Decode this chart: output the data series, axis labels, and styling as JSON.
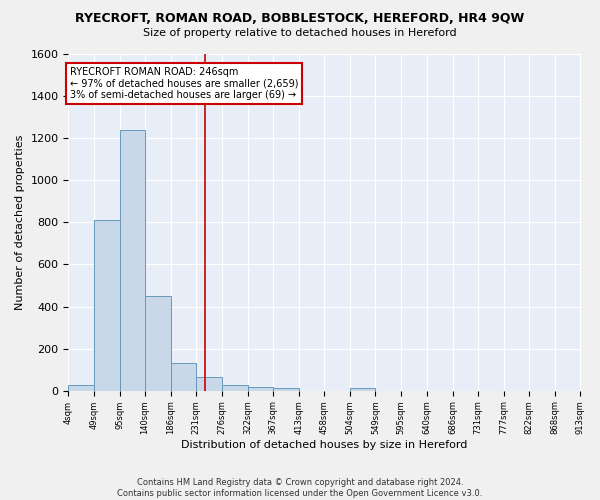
{
  "title": "RYECROFT, ROMAN ROAD, BOBBLESTOCK, HEREFORD, HR4 9QW",
  "subtitle": "Size of property relative to detached houses in Hereford",
  "xlabel": "Distribution of detached houses by size in Hereford",
  "ylabel": "Number of detached properties",
  "bar_color": "#c8d8e8",
  "bar_edgecolor": "#6699bb",
  "background_color": "#e8eef8",
  "grid_color": "#ffffff",
  "fig_facecolor": "#f0f0f0",
  "red_line_x": 246,
  "annotation_text": "RYECROFT ROMAN ROAD: 246sqm\n← 97% of detached houses are smaller (2,659)\n3% of semi-detached houses are larger (69) →",
  "annotation_box_color": "#ffffff",
  "annotation_box_edgecolor": "#cc0000",
  "footer_line1": "Contains HM Land Registry data © Crown copyright and database right 2024.",
  "footer_line2": "Contains public sector information licensed under the Open Government Licence v3.0.",
  "bin_edges": [
    4,
    49,
    95,
    140,
    186,
    231,
    276,
    322,
    367,
    413,
    458,
    504,
    549,
    595,
    640,
    686,
    731,
    777,
    822,
    868,
    913
  ],
  "bin_counts": [
    25,
    810,
    1240,
    450,
    130,
    65,
    28,
    18,
    15,
    0,
    0,
    15,
    0,
    0,
    0,
    0,
    0,
    0,
    0,
    0
  ],
  "ylim": [
    0,
    1600
  ],
  "yticks": [
    0,
    200,
    400,
    600,
    800,
    1000,
    1200,
    1400,
    1600
  ],
  "figsize": [
    6.0,
    5.0
  ],
  "dpi": 100
}
